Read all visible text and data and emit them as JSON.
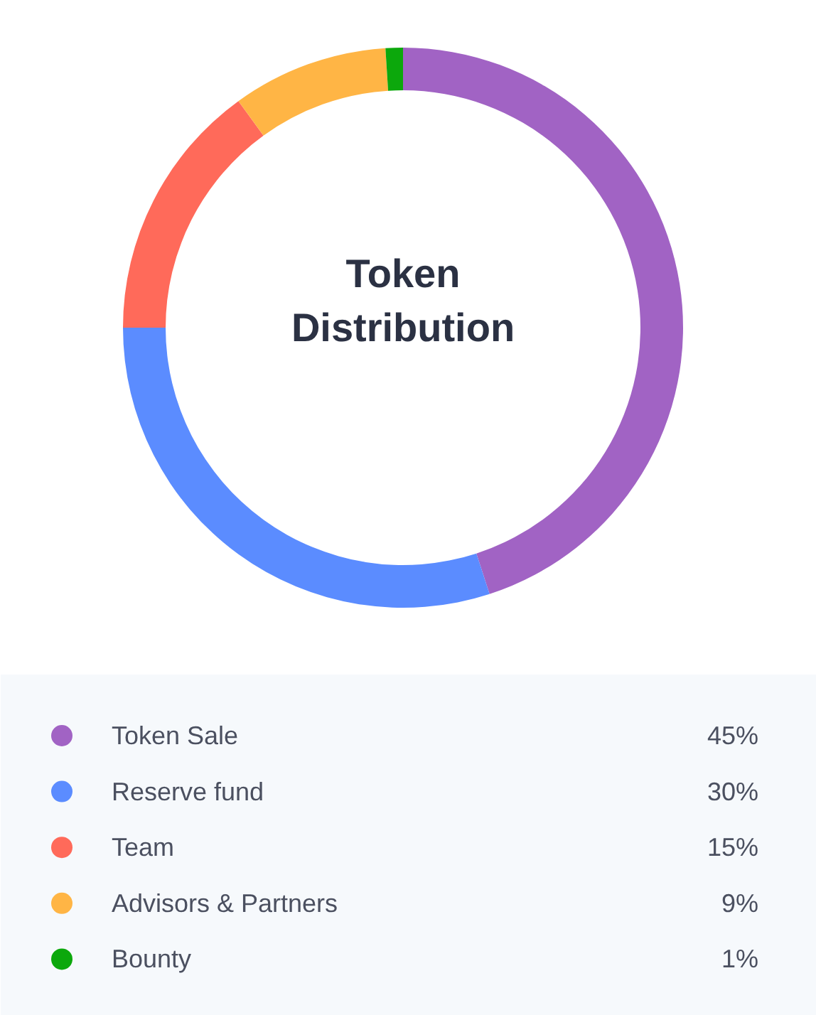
{
  "chart_data": {
    "type": "donut",
    "title": "Token Distribution",
    "categories": [
      "Token Sale",
      "Reserve fund",
      "Team",
      "Advisors & Partners",
      "Bounty"
    ],
    "values": [
      45,
      30,
      15,
      9,
      1
    ],
    "colors": [
      "#a163c4",
      "#5b8cff",
      "#ff6a5a",
      "#ffb545",
      "#0ca80c"
    ],
    "value_labels": [
      "45%",
      "30%",
      "15%",
      "9%",
      "1%"
    ],
    "legend": "bottom"
  }
}
